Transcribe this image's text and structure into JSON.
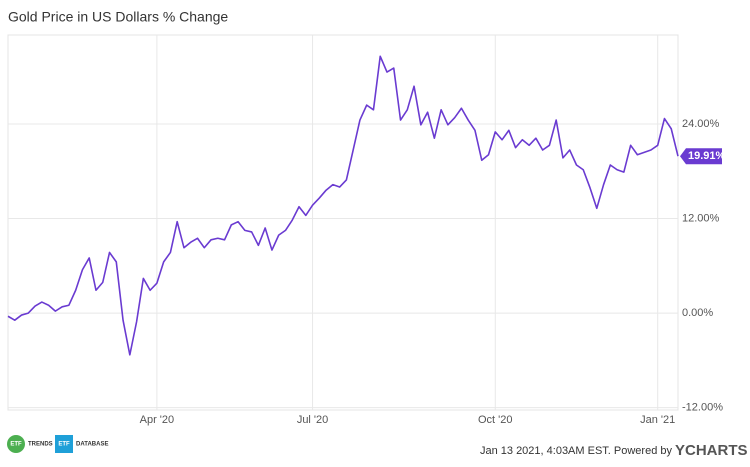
{
  "chart_data": {
    "type": "line",
    "title": "Gold Price in US Dollars % Change",
    "categories": [
      null,
      null,
      null,
      null,
      null,
      null,
      null,
      null,
      null,
      null,
      null,
      null,
      null,
      null,
      null,
      null,
      null,
      null,
      null,
      null,
      null,
      null,
      "Apr '20",
      null,
      null,
      null,
      null,
      null,
      null,
      null,
      null,
      null,
      null,
      null,
      null,
      null,
      null,
      null,
      null,
      null,
      null,
      null,
      null,
      null,
      null,
      "Jul '20",
      null,
      null,
      null,
      null,
      null,
      null,
      null,
      null,
      null,
      null,
      null,
      null,
      null,
      null,
      null,
      null,
      null,
      null,
      null,
      null,
      null,
      null,
      null,
      null,
      null,
      null,
      "Oct '20",
      null,
      null,
      null,
      null,
      null,
      null,
      null,
      null,
      null,
      null,
      null,
      null,
      null,
      null,
      null,
      null,
      null,
      null,
      null,
      null,
      null,
      null,
      null,
      "Jan '21",
      null,
      null,
      null
    ],
    "series": [
      {
        "name": "Gold Price in US Dollars % Change",
        "color": "#6a3bd1",
        "values": [
          -0.4,
          -0.9,
          -0.25,
          0,
          0.9,
          1.4,
          1.0,
          0.25,
          0.8,
          1.0,
          2.9,
          5.5,
          7.0,
          2.9,
          3.9,
          7.7,
          6.5,
          -0.9,
          -5.3,
          -1.1,
          4.4,
          2.9,
          3.8,
          6.5,
          7.7,
          11.6,
          8.3,
          9.0,
          9.5,
          8.3,
          9.3,
          9.5,
          9.3,
          11.2,
          11.6,
          10.5,
          10.3,
          8.6,
          10.8,
          8.0,
          9.9,
          10.5,
          11.8,
          13.5,
          12.4,
          13.7,
          14.6,
          15.6,
          16.3,
          16.0,
          16.9,
          20.7,
          24.5,
          26.4,
          25.8,
          32.6,
          30.6,
          31.1,
          24.5,
          25.8,
          28.8,
          23.9,
          25.5,
          22.2,
          25.8,
          23.9,
          24.8,
          26.0,
          24.5,
          23.2,
          19.4,
          20.1,
          23.0,
          22.0,
          23.2,
          21.0,
          22.0,
          21.3,
          22.2,
          20.7,
          21.3,
          24.5,
          19.7,
          20.7,
          18.8,
          18.2,
          15.9,
          13.3,
          16.3,
          18.8,
          18.2,
          17.9,
          21.3,
          20.1,
          20.4,
          20.7,
          21.3,
          24.7,
          23.4,
          19.91
        ],
        "value_labels": [
          null,
          null,
          null,
          null,
          null,
          null,
          null,
          null,
          null,
          null,
          null,
          null,
          null,
          null,
          null,
          null,
          null,
          null,
          null,
          null,
          null,
          null,
          null,
          null,
          null,
          null,
          null,
          null,
          null,
          null,
          null,
          null,
          null,
          null,
          null,
          null,
          null,
          null,
          null,
          null,
          null,
          null,
          null,
          null,
          null,
          null,
          null,
          null,
          null,
          null,
          null,
          null,
          null,
          null,
          null,
          null,
          null,
          null,
          null,
          null,
          null,
          null,
          null,
          null,
          null,
          null,
          null,
          null,
          null,
          null,
          null,
          null,
          null,
          null,
          null,
          null,
          null,
          null,
          null,
          null,
          null,
          null,
          null,
          null,
          null,
          null,
          null,
          null,
          null,
          null,
          null,
          null,
          null,
          null,
          null,
          null,
          null,
          null,
          null,
          "19.91%"
        ]
      }
    ],
    "ylim": [
      -12.3,
      35.3
    ],
    "yticks": [
      {
        "value": -12,
        "label": "-12.00%"
      },
      {
        "value": 0,
        "label": "0.00%"
      },
      {
        "value": 12,
        "label": "12.00%"
      },
      {
        "value": 24,
        "label": "24.00%"
      }
    ],
    "grid": true
  },
  "footer": {
    "logo_1_badge": "ETF",
    "logo_1_text": "TRENDS",
    "logo_2_badge": "ETF",
    "logo_2_text": "DATABASE",
    "timestamp": "Jan 13 2021, 4:03AM EST. Powered by",
    "brand": "YCHARTS"
  }
}
